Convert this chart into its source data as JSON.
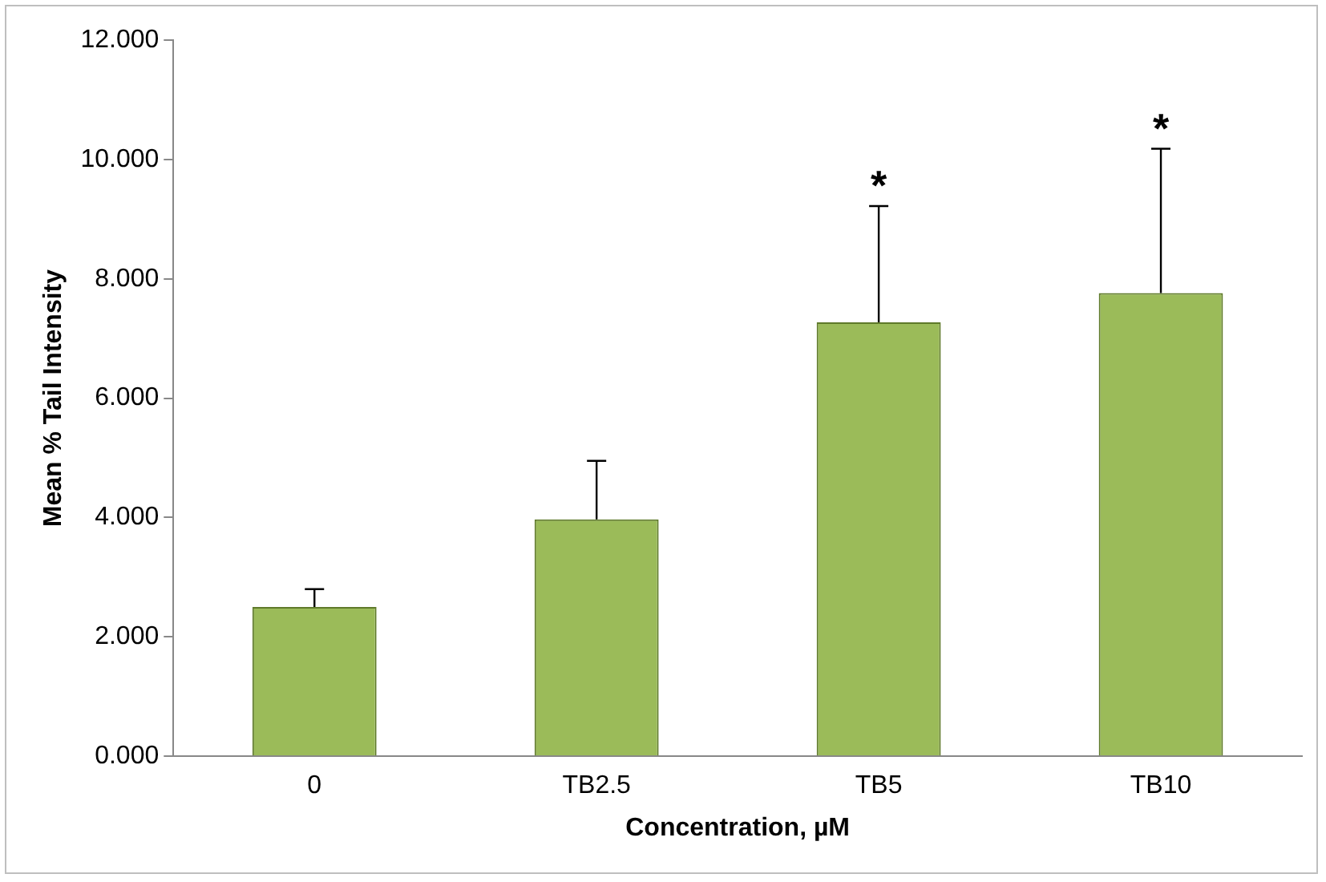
{
  "chart_data": {
    "type": "bar",
    "xlabel": "Concentration, µM",
    "ylabel": "Mean % Tail Intensity",
    "categories": [
      "0",
      "TB2.5",
      "TB5",
      "TB10"
    ],
    "values": [
      2.5,
      3.97,
      7.27,
      7.76
    ],
    "errors": [
      [
        2.5,
        2.8
      ],
      [
        3.97,
        4.95
      ],
      [
        7.27,
        9.22
      ],
      [
        7.76,
        10.18
      ]
    ],
    "color": "#9bbb59",
    "ylim": [
      0,
      12
    ],
    "yticks": [
      {
        "value": 0,
        "label": "0.000"
      },
      {
        "value": 2,
        "label": "2.000"
      },
      {
        "value": 4,
        "label": "4.000"
      },
      {
        "value": 6,
        "label": "6.000"
      },
      {
        "value": 8,
        "label": "8.000"
      },
      {
        "value": 10,
        "label": "10.000"
      },
      {
        "value": 12,
        "label": "12.000"
      }
    ],
    "annotations": [
      {
        "text": "*",
        "x": "TB5",
        "y": 9.22
      },
      {
        "text": "*",
        "x": "TB10",
        "y": 10.18
      }
    ],
    "grid": false,
    "legend": false
  }
}
